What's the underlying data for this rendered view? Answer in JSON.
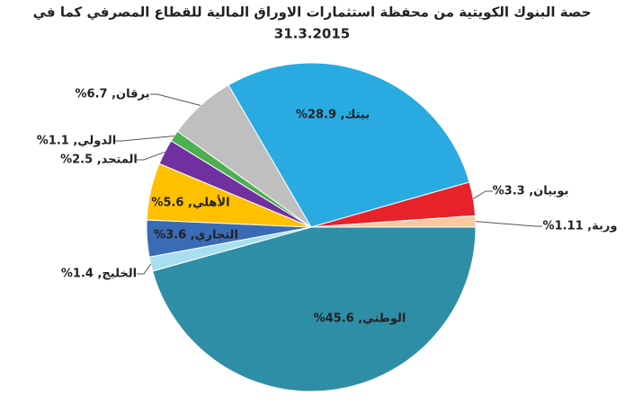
{
  "chart_data": {
    "type": "pie",
    "title": "حصة البنوك الكويتية من محفظة استثمارات الاوراق المالية للقطاع المصرفي كما في",
    "subtitle": "31.3.2015",
    "values": [
      45.6,
      1.4,
      3.6,
      5.6,
      2.5,
      1.1,
      6.7,
      28.9,
      3.3,
      1.11
    ],
    "value_labels": [
      "الوطني, 45.6%",
      "الخليج, 1.4%",
      "التجاري, 3.6%",
      "الأهلي, 5.6%",
      "المتحد, 2.5%",
      "الدولي, 1.1%",
      "برقان, 6.7%",
      "بيتك, 28.9%",
      "بوبيان, 3.3%",
      "وربة, 1.11%"
    ],
    "colors": [
      "#2e8ea6",
      "#a8dff0",
      "#3a6bb5",
      "#ffc000",
      "#7030a0",
      "#4caf50",
      "#bfbfbf",
      "#29abe2",
      "#e8222a",
      "#fbc9a0"
    ]
  }
}
